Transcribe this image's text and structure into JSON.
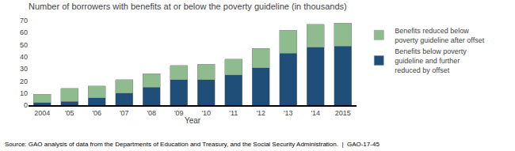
{
  "chart_data": {
    "type": "bar",
    "stacked": true,
    "title": "Number of borrowers with benefits at or below the poverty guideline (in thousands)",
    "xlabel": "Year",
    "categories": [
      "2004",
      "'05",
      "'06",
      "'07",
      "'08",
      "'09",
      "'10",
      "'11",
      "'12",
      "'13",
      "'14",
      "2015"
    ],
    "series": [
      {
        "name": "Benefits below poverty\nguideline and further\nreduced by offset",
        "color": "#1F4E79",
        "values": [
          2,
          3,
          6,
          10,
          15,
          21,
          21,
          25,
          31,
          43,
          48,
          49
        ]
      },
      {
        "name": "Benefits reduced below\npoverty guideline after offset",
        "color": "#8FBC8F",
        "values": [
          7,
          11,
          10,
          11,
          11,
          12,
          13,
          13,
          16,
          19,
          19,
          19
        ]
      }
    ],
    "ylim": [
      0,
      70
    ],
    "yticks": [
      0,
      10,
      20,
      30,
      40,
      50,
      60,
      70
    ],
    "grid": false,
    "legend": "right",
    "annotations": [
      "Source: GAO analysis of data from the Departments of Education and Treasury, and the Social Security Administration.  |  GAO-17-45"
    ]
  }
}
